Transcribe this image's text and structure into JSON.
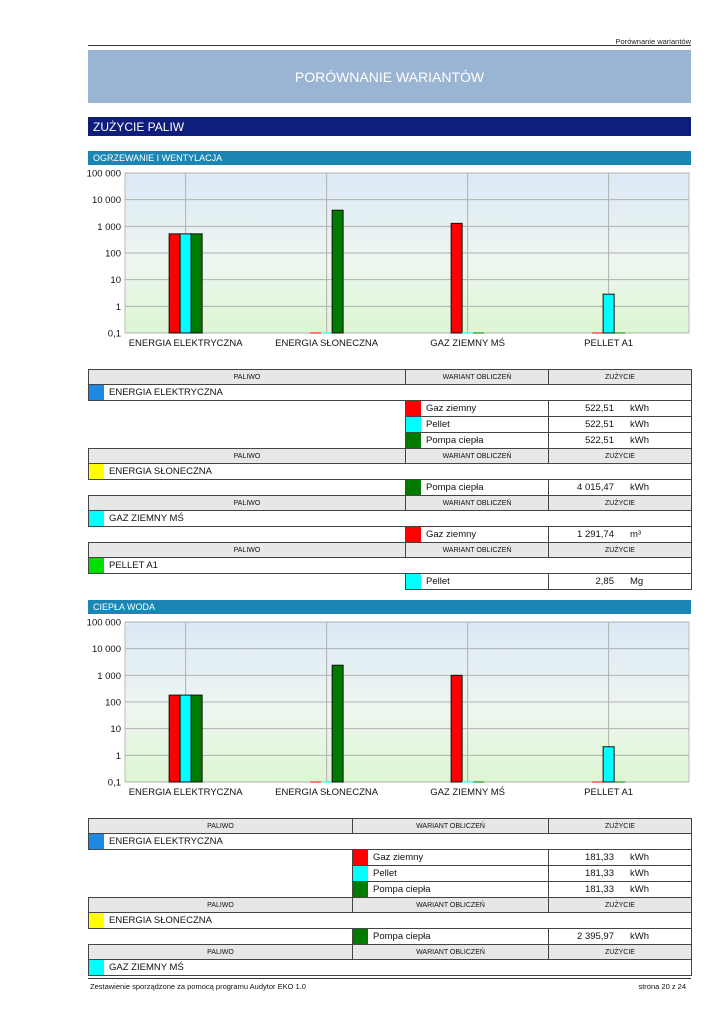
{
  "header": {
    "top_right": "Porównanie wariantów",
    "title": "PORÓWNANIE WARIANTÓW"
  },
  "section": {
    "title": "ZUŻYCIE PALIW"
  },
  "colors": {
    "gaz_ziemny": "#ff0000",
    "pellet": "#00ffff",
    "pompa_ciepla": "#007a00",
    "energia_elektryczna": "#1e88e5",
    "energia_sloneczna": "#ffff00",
    "gaz_ziemny_ms": "#00ffff",
    "pellet_a1": "#00e000"
  },
  "heating": {
    "title": "OGRZEWANIE I WENTYLACJA",
    "chart_data": {
      "type": "bar",
      "yscale": "log",
      "ylim": [
        0.1,
        100000
      ],
      "yticks": [
        "100 000",
        "10 000",
        "1 000",
        "100",
        "10",
        "1",
        "0,1"
      ],
      "categories": [
        "ENERGIA ELEKTRYCZNA",
        "ENERGIA SŁONECZNA",
        "GAZ ZIEMNY MŚ",
        "PELLET A1"
      ],
      "series": [
        {
          "name": "Gaz ziemny",
          "color": "#ff0000",
          "values": [
            522.51,
            null,
            1291.74,
            null
          ]
        },
        {
          "name": "Pellet",
          "color": "#00ffff",
          "values": [
            522.51,
            null,
            null,
            2.85
          ]
        },
        {
          "name": "Pompa ciepła",
          "color": "#007a00",
          "values": [
            522.51,
            4015.47,
            null,
            null
          ]
        }
      ]
    },
    "table": {
      "headers": [
        "PALIWO",
        "WARIANT OBLICZEŃ",
        "ZUŻYCIE"
      ],
      "groups": [
        {
          "fuel": "ENERGIA ELEKTRYCZNA",
          "color": "#1e88e5",
          "rows": [
            {
              "variant": "Gaz ziemny",
              "color": "#ff0000",
              "value": "522,51",
              "unit": "kWh"
            },
            {
              "variant": "Pellet",
              "color": "#00ffff",
              "value": "522,51",
              "unit": "kWh"
            },
            {
              "variant": "Pompa ciepła",
              "color": "#007a00",
              "value": "522,51",
              "unit": "kWh"
            }
          ]
        },
        {
          "fuel": "ENERGIA SŁONECZNA",
          "color": "#ffff00",
          "rows": [
            {
              "variant": "Pompa ciepła",
              "color": "#007a00",
              "value": "4 015,47",
              "unit": "kWh"
            }
          ]
        },
        {
          "fuel": "GAZ ZIEMNY MŚ",
          "color": "#00ffff",
          "rows": [
            {
              "variant": "Gaz ziemny",
              "color": "#ff0000",
              "value": "1 291,74",
              "unit": "m³"
            }
          ]
        },
        {
          "fuel": "PELLET A1",
          "color": "#00e000",
          "rows": [
            {
              "variant": "Pellet",
              "color": "#00ffff",
              "value": "2,85",
              "unit": "Mg"
            }
          ]
        }
      ]
    }
  },
  "hotwater": {
    "title": "CIEPŁA WODA",
    "chart_data": {
      "type": "bar",
      "yscale": "log",
      "ylim": [
        0.1,
        100000
      ],
      "yticks": [
        "100 000",
        "10 000",
        "1 000",
        "100",
        "10",
        "1",
        "0,1"
      ],
      "categories": [
        "ENERGIA ELEKTRYCZNA",
        "ENERGIA SŁONECZNA",
        "GAZ ZIEMNY MŚ",
        "PELLET A1"
      ],
      "series": [
        {
          "name": "Gaz ziemny",
          "color": "#ff0000",
          "values": [
            181.33,
            null,
            1000,
            null
          ]
        },
        {
          "name": "Pellet",
          "color": "#00ffff",
          "values": [
            181.33,
            null,
            null,
            2.1
          ]
        },
        {
          "name": "Pompa ciepła",
          "color": "#007a00",
          "values": [
            181.33,
            2395.97,
            null,
            null
          ]
        }
      ]
    },
    "table": {
      "headers": [
        "PALIWO",
        "WARIANT OBLICZEŃ",
        "ZUŻYCIE"
      ],
      "groups": [
        {
          "fuel": "ENERGIA ELEKTRYCZNA",
          "color": "#1e88e5",
          "rows": [
            {
              "variant": "Gaz ziemny",
              "color": "#ff0000",
              "value": "181,33",
              "unit": "kWh"
            },
            {
              "variant": "Pellet",
              "color": "#00ffff",
              "value": "181,33",
              "unit": "kWh"
            },
            {
              "variant": "Pompa ciepła",
              "color": "#007a00",
              "value": "181,33",
              "unit": "kWh"
            }
          ]
        },
        {
          "fuel": "ENERGIA SŁONECZNA",
          "color": "#ffff00",
          "rows": [
            {
              "variant": "Pompa ciepła",
              "color": "#007a00",
              "value": "2 395,97",
              "unit": "kWh"
            }
          ]
        },
        {
          "fuel": "GAZ ZIEMNY MŚ",
          "color": "#00ffff",
          "rows": []
        }
      ]
    }
  },
  "footer": {
    "left": "Zestawienie sporządzone za pomocą programu Audytor EKO 1.0",
    "right": "strona 20 z 24"
  }
}
